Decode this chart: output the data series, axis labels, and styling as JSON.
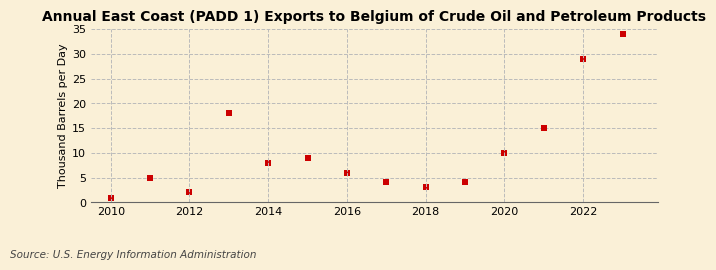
{
  "title": "Annual East Coast (PADD 1) Exports to Belgium of Crude Oil and Petroleum Products",
  "ylabel": "Thousand Barrels per Day",
  "source": "Source: U.S. Energy Information Administration",
  "years": [
    2010,
    2011,
    2012,
    2013,
    2014,
    2015,
    2016,
    2017,
    2018,
    2019,
    2020,
    2021,
    2022,
    2023
  ],
  "values": [
    0.8,
    5.0,
    2.0,
    18.0,
    8.0,
    9.0,
    6.0,
    4.0,
    3.0,
    4.0,
    10.0,
    15.0,
    29.0,
    34.0
  ],
  "marker_color": "#CC0000",
  "marker": "s",
  "marker_size": 4,
  "background_color": "#FAF0D7",
  "grid_color": "#BBBBBB",
  "grid_linestyle": "--",
  "xlim": [
    2009.5,
    2023.9
  ],
  "ylim": [
    0,
    35
  ],
  "yticks": [
    0,
    5,
    10,
    15,
    20,
    25,
    30,
    35
  ],
  "xticks": [
    2010,
    2012,
    2014,
    2016,
    2018,
    2020,
    2022
  ],
  "vgrid_ticks": [
    2010,
    2012,
    2014,
    2016,
    2018,
    2020,
    2022
  ],
  "title_fontsize": 10,
  "ylabel_fontsize": 8,
  "tick_fontsize": 8,
  "source_fontsize": 7.5
}
